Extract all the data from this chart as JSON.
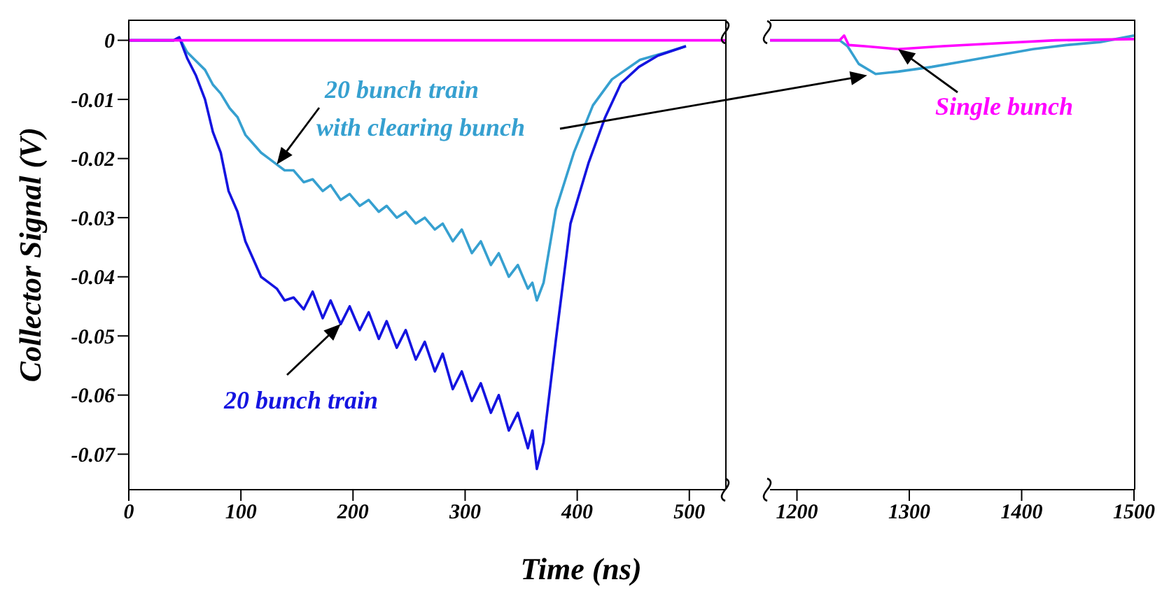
{
  "chart_data": [
    {
      "type": "line",
      "ylabel": "Collector Signal (V)",
      "xlabel": "Time (ns)",
      "xlim": [
        0,
        532
      ],
      "xticks": [
        0,
        100,
        200,
        300,
        400,
        500
      ],
      "ylim": [
        -0.076,
        0.0035
      ],
      "yticks": [
        0,
        -0.01,
        -0.02,
        -0.03,
        -0.04,
        -0.05,
        -0.06,
        -0.07
      ],
      "marker": "none",
      "line_style": "solid",
      "series": [
        {
          "name": "20 bunch train with clearing bunch",
          "color": "#36a0d0",
          "x": [
            0,
            40,
            45,
            52,
            60,
            68,
            75,
            82,
            90,
            97,
            104,
            111,
            118,
            125,
            132,
            139,
            147,
            156,
            164,
            173,
            180,
            189,
            197,
            206,
            214,
            223,
            230,
            239,
            247,
            256,
            264,
            273,
            280,
            289,
            297,
            306,
            314,
            323,
            330,
            339,
            347,
            356,
            360,
            364,
            370,
            381,
            397,
            414,
            431,
            456,
            480,
            497
          ],
          "values": [
            0,
            0,
            0.0005,
            -0.002,
            -0.0035,
            -0.005,
            -0.0075,
            -0.009,
            -0.0115,
            -0.013,
            -0.016,
            -0.0175,
            -0.019,
            -0.02,
            -0.021,
            -0.022,
            -0.022,
            -0.024,
            -0.0235,
            -0.0255,
            -0.0245,
            -0.027,
            -0.026,
            -0.028,
            -0.027,
            -0.029,
            -0.028,
            -0.03,
            -0.029,
            -0.031,
            -0.03,
            -0.032,
            -0.031,
            -0.034,
            -0.032,
            -0.036,
            -0.034,
            -0.038,
            -0.036,
            -0.04,
            -0.038,
            -0.042,
            -0.041,
            -0.044,
            -0.041,
            -0.0286,
            -0.019,
            -0.011,
            -0.0066,
            -0.0033,
            -0.002,
            -0.001
          ]
        },
        {
          "name": "20 bunch train",
          "color": "#1414e0",
          "x": [
            0,
            40,
            45,
            52,
            60,
            68,
            75,
            82,
            89,
            97,
            104,
            111,
            118,
            125,
            132,
            139,
            147,
            156,
            164,
            173,
            180,
            189,
            197,
            206,
            214,
            223,
            230,
            239,
            247,
            256,
            264,
            273,
            280,
            289,
            297,
            306,
            314,
            323,
            330,
            339,
            347,
            356,
            360,
            364,
            370,
            381,
            394,
            410,
            425,
            439,
            455,
            472,
            497
          ],
          "values": [
            0,
            0,
            0.0005,
            -0.003,
            -0.006,
            -0.01,
            -0.0155,
            -0.019,
            -0.0255,
            -0.029,
            -0.034,
            -0.037,
            -0.04,
            -0.041,
            -0.042,
            -0.044,
            -0.0435,
            -0.0455,
            -0.0425,
            -0.047,
            -0.044,
            -0.048,
            -0.045,
            -0.049,
            -0.046,
            -0.0505,
            -0.0475,
            -0.052,
            -0.049,
            -0.054,
            -0.051,
            -0.056,
            -0.053,
            -0.059,
            -0.056,
            -0.061,
            -0.058,
            -0.063,
            -0.06,
            -0.066,
            -0.063,
            -0.069,
            -0.066,
            -0.0725,
            -0.068,
            -0.0506,
            -0.031,
            -0.0208,
            -0.013,
            -0.0073,
            -0.0045,
            -0.0026,
            -0.001
          ]
        },
        {
          "color": "#ff00ff",
          "x": [
            0,
            532
          ],
          "values": [
            0,
            0
          ]
        }
      ]
    },
    {
      "type": "line",
      "xlim": [
        1176,
        1500
      ],
      "xticks": [
        1200,
        1300,
        1400,
        1500
      ],
      "ylim": [
        -0.076,
        0.0035
      ],
      "yticks": [
        0,
        -0.01,
        -0.02,
        -0.03,
        -0.04,
        -0.05,
        -0.06,
        -0.07
      ],
      "tick_labels": "x",
      "marker": "none",
      "line_style": "solid",
      "series": [
        {
          "color": "#36a0d0",
          "x": [
            1176,
            1238,
            1245,
            1255,
            1270,
            1290,
            1320,
            1350,
            1380,
            1410,
            1440,
            1470,
            1500
          ],
          "values": [
            0,
            0,
            -0.001,
            -0.004,
            -0.0057,
            -0.0053,
            -0.0045,
            -0.0035,
            -0.0025,
            -0.0015,
            -0.0008,
            -0.0003,
            0.0008
          ]
        },
        {
          "name": "Single bunch",
          "color": "#ff00ff",
          "x": [
            1176,
            1238,
            1242,
            1246,
            1260,
            1290,
            1330,
            1380,
            1430,
            1500
          ],
          "values": [
            0,
            0,
            0.0008,
            -0.0008,
            -0.001,
            -0.0015,
            -0.001,
            -0.0005,
            0,
            0.0002
          ]
        }
      ]
    }
  ]
}
